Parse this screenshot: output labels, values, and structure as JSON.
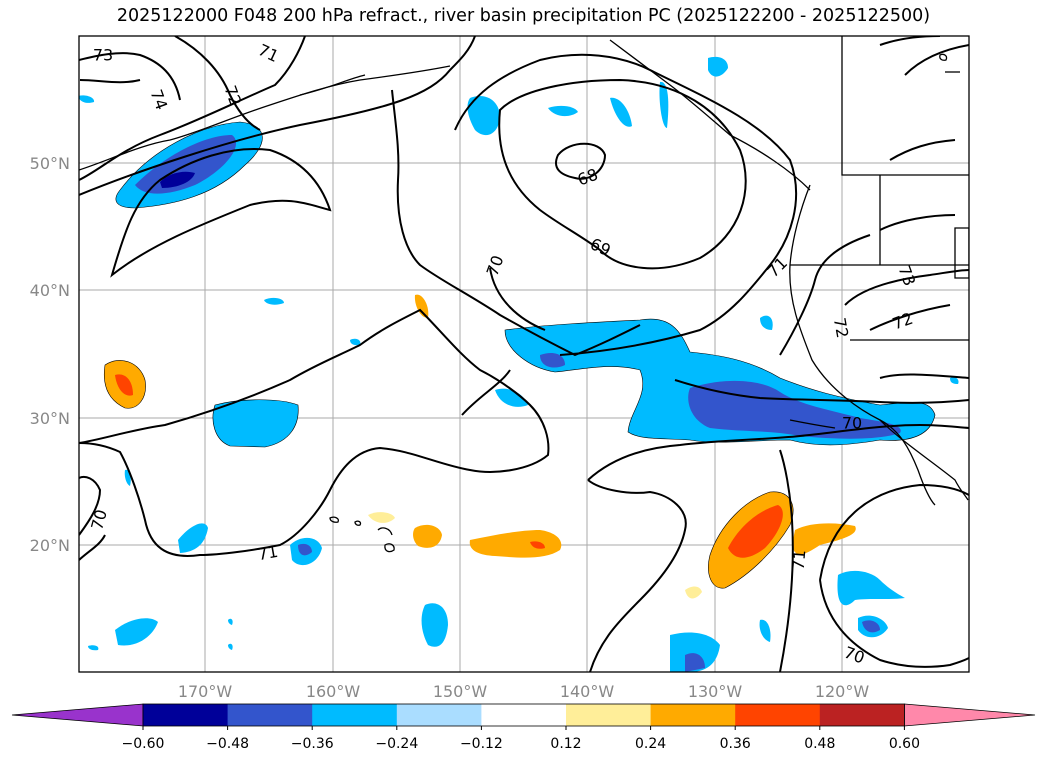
{
  "title": "2025122000 F048 200 hPa refract., river basin precipitation PC (2025122200 - 2025122500)",
  "map": {
    "lat_ticks": [
      "50°N",
      "40°N",
      "30°N",
      "20°N"
    ],
    "lon_ticks": [
      "170°W",
      "160°W",
      "150°W",
      "140°W",
      "130°W",
      "120°W"
    ],
    "grid": true,
    "contour_labels": [
      "73",
      "71",
      "74",
      "72",
      "68",
      "69",
      "70",
      "71",
      "73",
      "72",
      "72",
      "71",
      "70",
      "70",
      "71",
      "70",
      "71"
    ]
  },
  "colorbar": {
    "colors": [
      "#9933cc",
      "#000099",
      "#3355cc",
      "#00bbff",
      "#aaddff",
      "#ffffff",
      "#ffee99",
      "#ffaa00",
      "#ff4400",
      "#bb2222",
      "#ff88aa"
    ],
    "ticks": [
      "−0.60",
      "−0.48",
      "−0.36",
      "−0.24",
      "−0.12",
      "0.12",
      "0.24",
      "0.36",
      "0.48",
      "0.60"
    ]
  }
}
